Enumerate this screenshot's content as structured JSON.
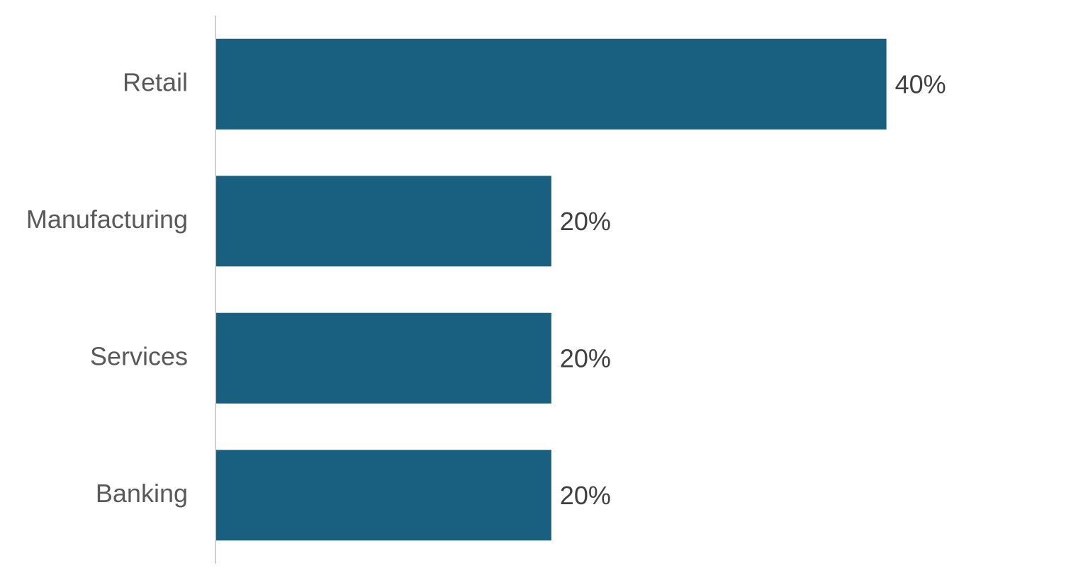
{
  "chart_data": {
    "type": "bar",
    "orientation": "horizontal",
    "categories": [
      "Retail",
      "Manufacturing",
      "Services",
      "Banking"
    ],
    "values": [
      40,
      20,
      20,
      20
    ],
    "value_labels": [
      "40%",
      "20%",
      "20%",
      "20%"
    ],
    "color": "#185f80",
    "xlim": [
      0,
      50
    ]
  }
}
